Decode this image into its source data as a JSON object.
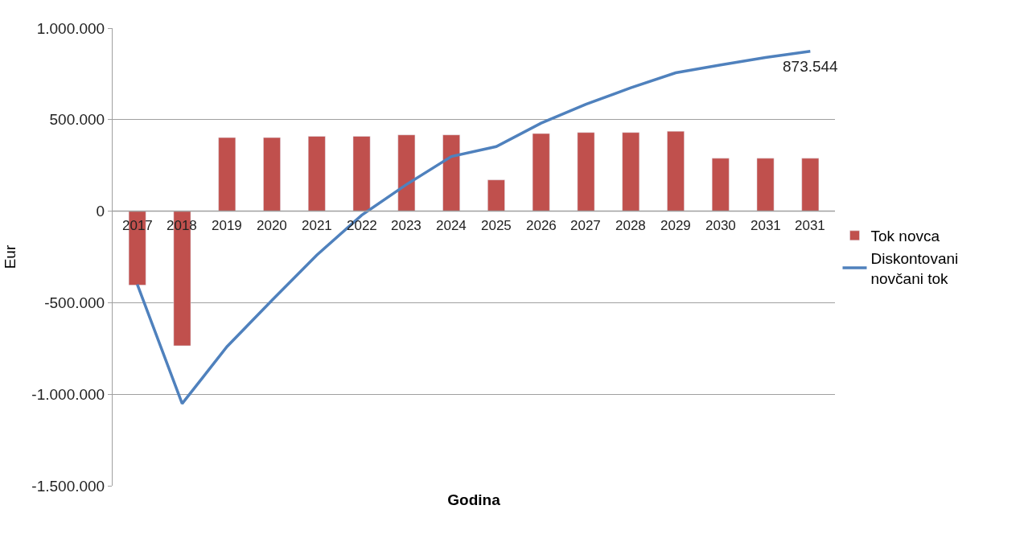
{
  "chart_data": {
    "type": "bar",
    "xlabel": "Godina",
    "ylabel": "Eur",
    "categories": [
      "2017",
      "2018",
      "2019",
      "2020",
      "2021",
      "2022",
      "2023",
      "2024",
      "2025",
      "2026",
      "2027",
      "2028",
      "2029",
      "2030",
      "2031",
      "2031"
    ],
    "series": [
      {
        "name": "Tok novca",
        "color": "#c0504d",
        "values": [
          -404000,
          -735000,
          402000,
          402000,
          409000,
          409000,
          417000,
          417000,
          171000,
          424000,
          430000,
          430000,
          437000,
          289000,
          289000,
          289000
        ]
      },
      {
        "name": "Diskontovani novčani tok",
        "type": "line",
        "color": "#4f81bd",
        "values": [
          -400000,
          -1051000,
          -740000,
          -487000,
          -240000,
          -22000,
          146000,
          299000,
          353000,
          481000,
          584000,
          674000,
          756000,
          799000,
          840000,
          873544
        ],
        "value_labels": [
          null,
          null,
          null,
          null,
          null,
          null,
          null,
          null,
          null,
          null,
          null,
          null,
          null,
          null,
          null,
          "873.544"
        ]
      }
    ],
    "ylim": [
      -1500000,
      1000000
    ],
    "yticks": [
      {
        "value": -1500000,
        "label": "-1.500.000"
      },
      {
        "value": -1000000,
        "label": "-1.000.000"
      },
      {
        "value": -500000,
        "label": "-500.000"
      },
      {
        "value": 0,
        "label": "0"
      },
      {
        "value": 500000,
        "label": "500.000"
      },
      {
        "value": 1000000,
        "label": "1.000.000"
      }
    ],
    "grid": "y",
    "legend": "right",
    "marker": "none",
    "line_style": "solid"
  }
}
